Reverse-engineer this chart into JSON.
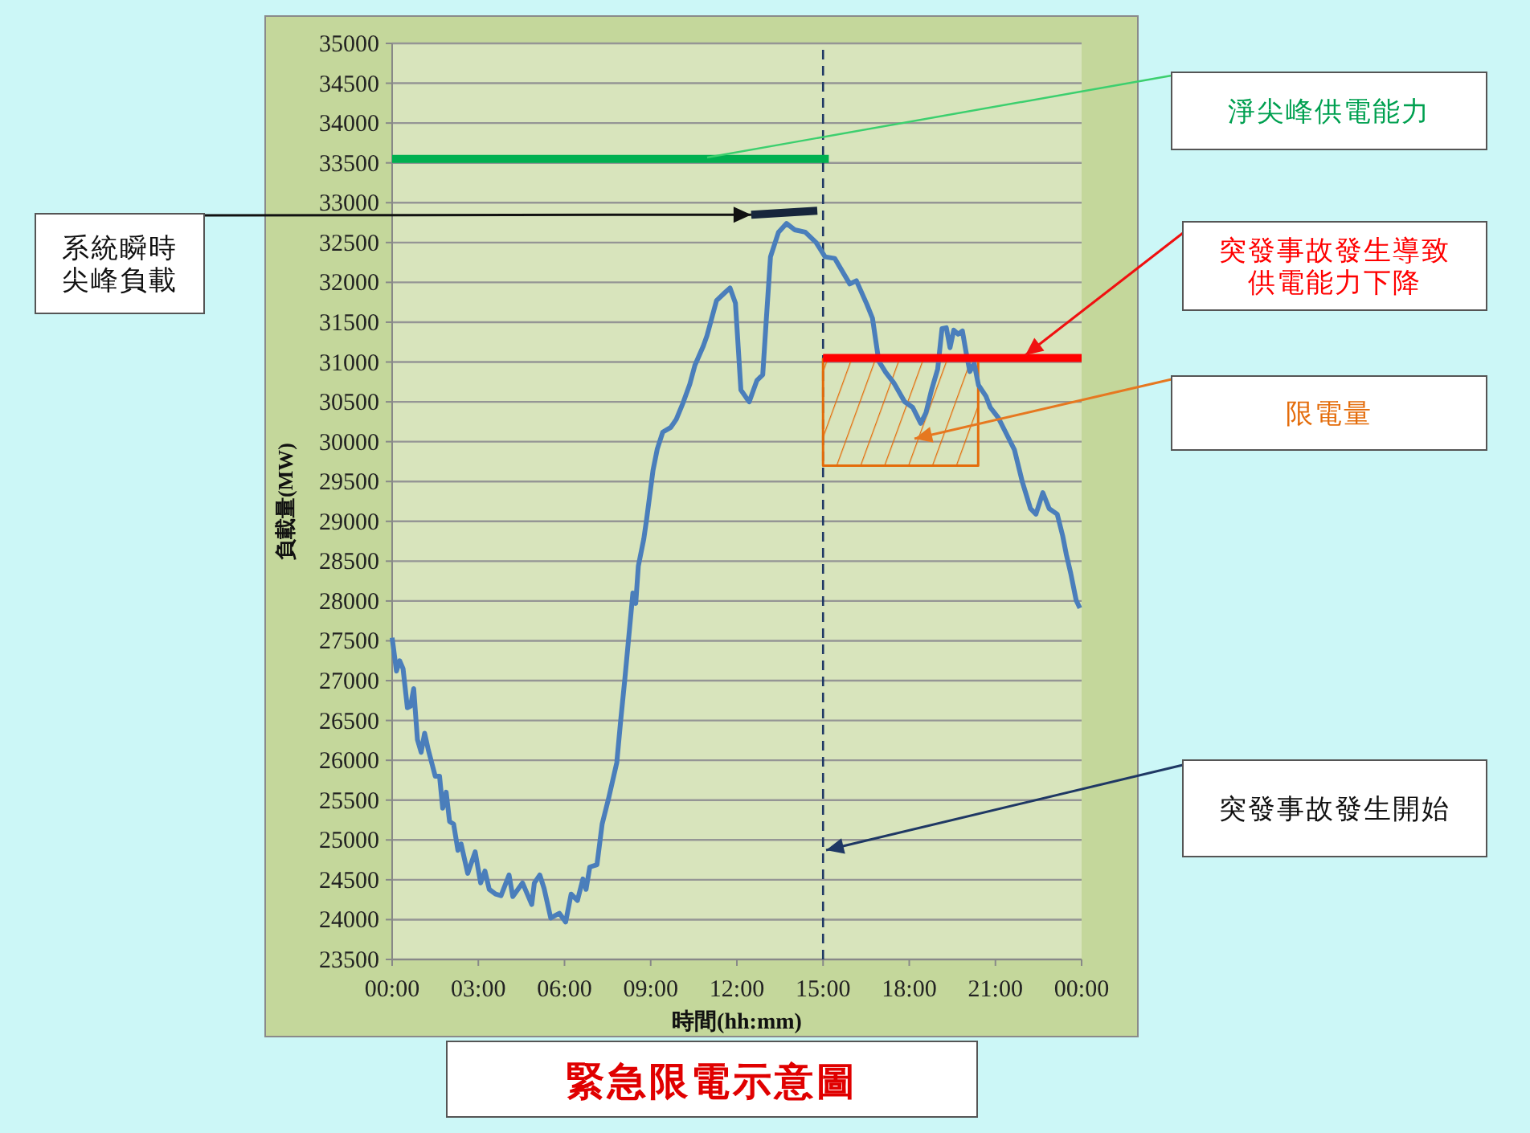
{
  "chart_data": {
    "type": "line",
    "title": "緊急限電示意圖",
    "xlabel": "時間(hh:mm)",
    "ylabel": "負載量(MW)",
    "xlim": [
      0,
      24
    ],
    "ylim": [
      23500,
      35000
    ],
    "xticks": [
      {
        "value": 0,
        "label": "00:00"
      },
      {
        "value": 3,
        "label": "03:00"
      },
      {
        "value": 6,
        "label": "06:00"
      },
      {
        "value": 9,
        "label": "09:00"
      },
      {
        "value": 12,
        "label": "12:00"
      },
      {
        "value": 15,
        "label": "15:00"
      },
      {
        "value": 18,
        "label": "18:00"
      },
      {
        "value": 21,
        "label": "21:00"
      },
      {
        "value": 24,
        "label": "00:00"
      }
    ],
    "yticks": [
      23500,
      24000,
      24500,
      25000,
      25500,
      26000,
      26500,
      27000,
      27500,
      28000,
      28500,
      29000,
      29500,
      30000,
      30500,
      31000,
      31500,
      32000,
      32500,
      33000,
      33500,
      34000,
      34500,
      35000
    ],
    "grid": "y",
    "marker": "none",
    "series": [
      {
        "color": "#4a7ebb",
        "x": [
          0,
          0.15,
          0.26,
          0.38,
          0.53,
          0.64,
          0.75,
          0.88,
          1.01,
          1.13,
          1.26,
          1.5,
          1.65,
          1.76,
          1.88,
          2.0,
          2.14,
          2.29,
          2.4,
          2.63,
          2.89,
          3.08,
          3.23,
          3.38,
          3.6,
          3.79,
          4.07,
          4.2,
          4.54,
          4.86,
          4.95,
          5.14,
          5.29,
          5.52,
          5.82,
          6.04,
          6.23,
          6.45,
          6.64,
          6.75,
          6.88,
          7.13,
          7.31,
          7.54,
          7.82,
          7.95,
          8.1,
          8.38,
          8.48,
          8.57,
          8.76,
          8.86,
          9.08,
          9.23,
          9.42,
          9.7,
          9.89,
          10.13,
          10.36,
          10.54,
          10.83,
          10.96,
          11.29,
          11.58,
          11.76,
          11.95,
          12.14,
          12.33,
          12.43,
          12.7,
          12.9,
          13.02,
          13.17,
          13.45,
          13.73,
          14.01,
          14.38,
          14.76,
          15.07,
          15.41,
          15.93,
          16.16,
          16.53,
          16.72,
          16.94,
          17.18,
          17.46,
          17.84,
          18.12,
          18.4,
          18.58,
          18.77,
          18.99,
          19.14,
          19.29,
          19.42,
          19.55,
          19.7,
          19.85,
          19.98,
          20.11,
          20.26,
          20.41,
          20.67,
          20.82,
          21.1,
          21.38,
          21.66,
          21.94,
          22.22,
          22.41,
          22.65,
          22.87,
          23.15,
          23.34,
          23.47,
          23.62,
          23.81,
          23.94
        ],
        "values": [
          27540,
          27120,
          27250,
          27150,
          26660,
          26680,
          26900,
          26260,
          26100,
          26340,
          26130,
          25800,
          25800,
          25400,
          25600,
          25230,
          25200,
          24870,
          24950,
          24580,
          24850,
          24460,
          24610,
          24380,
          24320,
          24300,
          24560,
          24290,
          24460,
          24190,
          24460,
          24560,
          24390,
          24020,
          24080,
          23970,
          24320,
          24240,
          24510,
          24380,
          24660,
          24690,
          25200,
          25530,
          25970,
          26480,
          27020,
          28100,
          27970,
          28440,
          28780,
          29030,
          29640,
          29910,
          30120,
          30180,
          30280,
          30490,
          30720,
          30960,
          31200,
          31330,
          31770,
          31870,
          31930,
          31740,
          30650,
          30550,
          30500,
          30770,
          30840,
          31510,
          32320,
          32630,
          32740,
          32660,
          32630,
          32500,
          32320,
          32300,
          31980,
          32020,
          31720,
          31550,
          31010,
          30870,
          30740,
          30500,
          30430,
          30230,
          30360,
          30640,
          30910,
          31420,
          31430,
          31180,
          31400,
          31350,
          31390,
          31120,
          30880,
          30980,
          30710,
          30570,
          30430,
          30300,
          30100,
          29900,
          29490,
          29160,
          29090,
          29360,
          29160,
          29090,
          28820,
          28580,
          28350,
          28010,
          27910
        ]
      },
      {
        "color": "#00b050",
        "x": [
          0,
          15.2
        ],
        "values": [
          33550,
          33550
        ]
      },
      {
        "color": "#17263c",
        "x": [
          12.5,
          14.8
        ],
        "values": [
          32850,
          32900
        ]
      },
      {
        "color": "#ff0000",
        "x": [
          15,
          24
        ],
        "values": [
          31050,
          31050
        ]
      },
      {
        "type": "area",
        "color": "#e46c0a",
        "x": [
          15,
          15,
          20.4,
          20.4,
          15
        ],
        "values": [
          31050,
          29700,
          29700,
          31050,
          31050
        ]
      }
    ],
    "ref_lines": [
      {
        "axis": "x",
        "value": 15,
        "line_style": "dashed",
        "color": "#1f3864"
      }
    ],
    "annotations": [
      "淨尖峰供電能力",
      {
        "text": "系統瞬時尖峰負載",
        "x": 12.5,
        "y": 32850
      },
      "突發事故發生導致供電能力下降",
      "限電量",
      "突發事故發生開始"
    ]
  }
}
